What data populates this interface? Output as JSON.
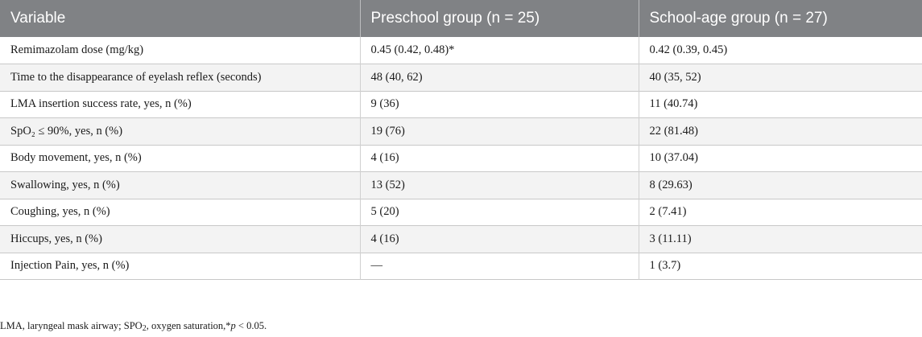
{
  "table": {
    "headers": [
      "Variable",
      "Preschool group (n = 25)",
      "School-age group (n = 27)"
    ],
    "rows": [
      [
        "Remimazolam dose (mg/kg)",
        "0.45 (0.42, 0.48)*",
        "0.42 (0.39, 0.45)"
      ],
      [
        "Time to the disappearance of eyelash reflex (seconds)",
        "48 (40, 62)",
        "40 (35, 52)"
      ],
      [
        "LMA insertion success rate, yes, n (%)",
        "9 (36)",
        "11 (40.74)"
      ],
      [
        "SpO₂ ≤ 90%, yes, n (%)",
        "19 (76)",
        "22 (81.48)"
      ],
      [
        "Body movement, yes, n (%)",
        "4 (16)",
        "10 (37.04)"
      ],
      [
        "Swallowing, yes, n (%)",
        "13 (52)",
        "8 (29.63)"
      ],
      [
        "Coughing, yes, n (%)",
        "5 (20)",
        "2 (7.41)"
      ],
      [
        "Hiccups, yes, n (%)",
        "4 (16)",
        "3 (11.11)"
      ],
      [
        "Injection Pain, yes, n (%)",
        "—",
        "1 (3.7)"
      ]
    ]
  },
  "footnote": {
    "lead": "LMA, laryngeal mask airway; SPO",
    "sub": "2",
    "mid": ", oxygen saturation,*",
    "p": "p",
    "tail": " < 0.05."
  }
}
